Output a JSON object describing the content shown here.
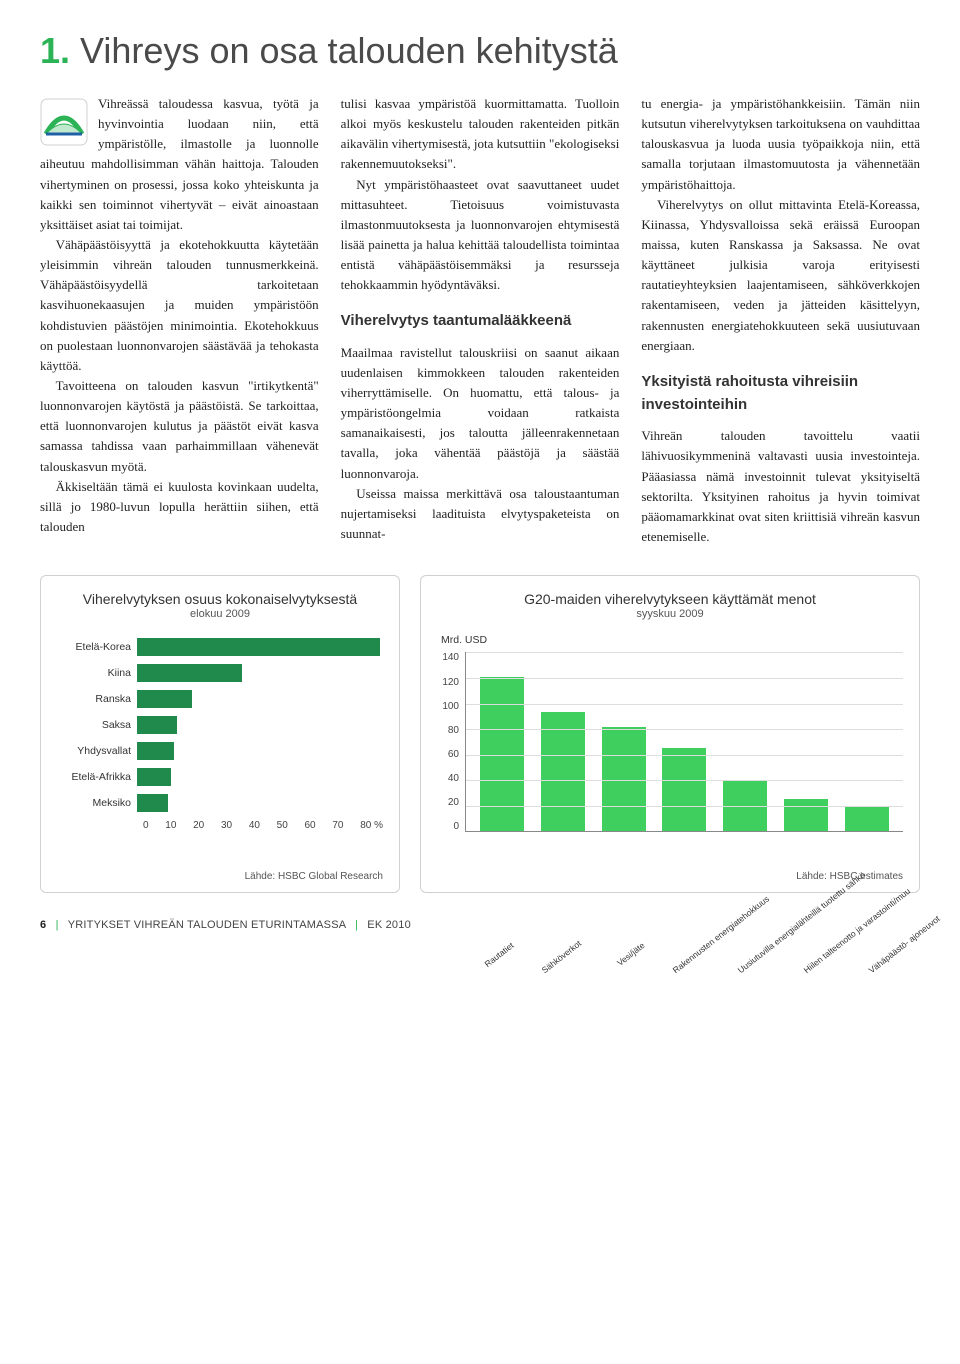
{
  "heading": {
    "num": "1.",
    "text": "Vihreys on osa talouden kehitystä"
  },
  "col1": {
    "p1": "Vihreässä taloudessa kasvua, työtä ja hyvinvointia luodaan niin, että ympäristölle, ilmastolle ja luonnolle aiheutuu mahdollisimman vähän haittoja. Talouden vihertyminen on prosessi, jossa koko yhteiskunta ja kaikki sen toiminnot vihertyvät – eivät ainoastaan yksittäiset asiat tai toimijat.",
    "p2": "Vähäpäästöisyyttä ja ekotehokkuutta käytetään yleisimmin vihreän talouden tunnusmerkkeinä. Vähäpäästöisyydellä tarkoitetaan kasvihuonekaasujen ja muiden ympäristöön kohdistuvien päästöjen minimointia. Ekotehokkuus on puolestaan luonnonvarojen säästävää ja tehokasta käyttöä.",
    "p3": "Tavoitteena on talouden kasvun \"irtikytkentä\" luonnonvarojen käytöstä ja päästöistä. Se tarkoittaa, että luonnonvarojen kulutus ja päästöt eivät kasva samassa tahdissa vaan parhaimmillaan vähenevät talouskasvun myötä.",
    "p4": "Äkkiseltään tämä ei kuulosta kovinkaan uudelta, sillä jo 1980-luvun lopulla herättiin siihen, että talouden"
  },
  "col2": {
    "p1": "tulisi kasvaa ympäristöä kuormittamatta. Tuolloin alkoi myös keskustelu talouden rakenteiden pitkän aikavälin vihertymisestä, jota kutsuttiin \"ekologiseksi rakennemuutokseksi\".",
    "p2": "Nyt ympäristöhaasteet ovat saavuttaneet uudet mittasuhteet. Tietoisuus voimistuvasta ilmastonmuutoksesta ja luonnonvarojen ehtymisestä lisää painetta ja halua kehittää taloudellista toimintaa entistä vähäpäästöisemmäksi ja resursseja tehokkaammin hyödyntäväksi.",
    "sub1": "Viherelvytys taantumalääkkeenä",
    "p3": "Maailmaa ravistellut talouskriisi on saanut aikaan uudenlaisen kimmokkeen talouden rakenteiden viherryttämiselle. On huomattu, että talous- ja ympäristöongelmia voidaan ratkaista samanaikaisesti, jos taloutta jälleenrakennetaan tavalla, joka vähentää päästöjä ja säästää luonnonvaroja.",
    "p4": "Useissa maissa merkittävä osa taloustaantuman nujertamiseksi laadituista elvytyspaketeista on suunnat-"
  },
  "col3": {
    "p1": "tu energia- ja ympäristöhankkeisiin. Tämän niin kutsutun viherelvytyksen tarkoituksena on vauhdittaa talouskasvua ja luoda uusia työpaikkoja niin, että samalla torjutaan ilmastomuutosta ja vähennetään ympäristöhaittoja.",
    "p2": "Viherelvytys on ollut mittavinta Etelä-Koreassa, Kiinassa, Yhdysvalloissa sekä eräissä Euroopan maissa, kuten Ranskassa ja Saksassa. Ne ovat käyttäneet julkisia varoja erityisesti rautatieyhteyksien laajentamiseen, sähköverkkojen rakentamiseen, veden ja jätteiden käsittelyyn, rakennusten energiatehokkuuteen sekä uusiutuvaan energiaan.",
    "sub1": "Yksityistä rahoitusta vihreisiin investointeihin",
    "p3": "Vihreän talouden tavoittelu vaatii lähivuosikymmeninä valtavasti uusia investointeja. Pääasiassa nämä investoinnit tulevat yksityiseltä sektorilta. Yksityinen rahoitus ja hyvin toimivat pääomamarkkinat ovat siten kriittisiä vihreän kasvun etenemiselle."
  },
  "chart1": {
    "type": "bar-horizontal",
    "title": "Viherelvytyksen osuus kokonaiselvytyksestä",
    "subtitle": "elokuu 2009",
    "categories": [
      "Etelä-Korea",
      "Kiina",
      "Ranska",
      "Saksa",
      "Yhdysvallat",
      "Etelä-Afrikka",
      "Meksiko"
    ],
    "values": [
      79,
      34,
      18,
      13,
      12,
      11,
      10
    ],
    "xmax": 80,
    "xticks": [
      0,
      10,
      20,
      30,
      40,
      50,
      60,
      70,
      80
    ],
    "xunit": "%",
    "bar_color": "#1f8a4c",
    "source": "Lähde: HSBC Global Research"
  },
  "chart2": {
    "type": "bar-vertical",
    "title": "G20-maiden viherelvytykseen käyttämät menot",
    "subtitle": "syyskuu 2009",
    "yunit": "Mrd. USD",
    "categories": [
      "Rautatiet",
      "Sähköverkot",
      "Vesi/jäte",
      "Rakennusten energiatehokkuus",
      "Uusiutuvilla energialähteillä tuotettu sähkö",
      "Hiilen talteenotto ja varastointi/muu",
      "Vähäpäästö- ajoneuvot"
    ],
    "values": [
      121,
      93,
      82,
      65,
      40,
      25,
      20
    ],
    "ymax": 140,
    "yticks": [
      140,
      120,
      100,
      80,
      60,
      40,
      20,
      0
    ],
    "bar_color": "#3ecf5e",
    "source": "Lähde: HSBC estimates"
  },
  "footer": {
    "page": "6",
    "title": "YRITYKSET VIHREÄN TALOUDEN ETURINTAMASSA",
    "org": "EK 2010"
  }
}
